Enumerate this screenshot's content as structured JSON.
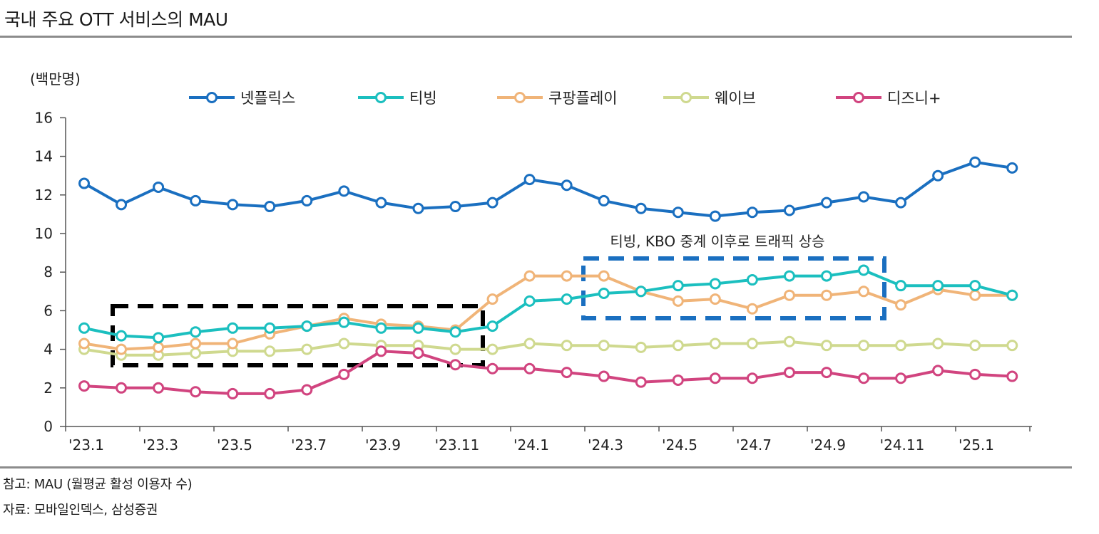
{
  "header": {
    "title": "국내 주요 OTT 서비스의 MAU"
  },
  "footer": {
    "note": "참고: MAU (월평균 활성 이용자 수)",
    "source": "자료: 모바일인덱스, 삼성증권"
  },
  "chart_data": {
    "type": "line",
    "title": "국내 주요 OTT 서비스의 MAU",
    "ylabel": "(백만명)",
    "xlabel": "",
    "ylim": [
      0,
      16
    ],
    "yticks": [
      0,
      2,
      4,
      6,
      8,
      10,
      12,
      14,
      16
    ],
    "x": [
      "'23.1",
      "'23.2",
      "'23.3",
      "'23.4",
      "'23.5",
      "'23.6",
      "'23.7",
      "'23.8",
      "'23.9",
      "'23.10",
      "'23.11",
      "'23.12",
      "'24.1",
      "'24.2",
      "'24.3",
      "'24.4",
      "'24.5",
      "'24.6",
      "'24.7",
      "'24.8",
      "'24.9",
      "'24.10",
      "'24.11",
      "'24.12",
      "'25.1",
      "'25.2"
    ],
    "xtick_labels": [
      "'23.1",
      "'23.3",
      "'23.5",
      "'23.7",
      "'23.9",
      "'23.11",
      "'24.1",
      "'24.3",
      "'24.5",
      "'24.7",
      "'24.9",
      "'24.11",
      "'25.1"
    ],
    "legend_position": "top",
    "series": [
      {
        "name": "넷플릭스",
        "color": "#1a6fc0",
        "values": [
          12.6,
          11.5,
          12.4,
          11.7,
          11.5,
          11.4,
          11.7,
          12.2,
          11.6,
          11.3,
          11.4,
          11.6,
          12.8,
          12.5,
          11.7,
          11.3,
          11.1,
          10.9,
          11.1,
          11.2,
          11.6,
          11.9,
          11.6,
          13.0,
          13.7,
          13.4
        ]
      },
      {
        "name": "티빙",
        "color": "#1bbfbf",
        "values": [
          5.1,
          4.7,
          4.6,
          4.9,
          5.1,
          5.1,
          5.2,
          5.4,
          5.1,
          5.1,
          4.9,
          5.2,
          6.5,
          6.6,
          6.9,
          7.0,
          7.3,
          7.4,
          7.6,
          7.8,
          7.8,
          8.1,
          7.3,
          7.3,
          7.3,
          6.8
        ]
      },
      {
        "name": "쿠팡플레이",
        "color": "#f0b478",
        "values": [
          4.3,
          4.0,
          4.1,
          4.3,
          4.3,
          4.8,
          5.2,
          5.6,
          5.3,
          5.2,
          5.0,
          6.6,
          7.8,
          7.8,
          7.8,
          7.0,
          6.5,
          6.6,
          6.1,
          6.8,
          6.8,
          7.0,
          6.3,
          7.1,
          6.8,
          6.8
        ]
      },
      {
        "name": "웨이브",
        "color": "#cfd98f",
        "values": [
          4.0,
          3.7,
          3.7,
          3.8,
          3.9,
          3.9,
          4.0,
          4.3,
          4.2,
          4.2,
          4.0,
          4.0,
          4.3,
          4.2,
          4.2,
          4.1,
          4.2,
          4.3,
          4.3,
          4.4,
          4.2,
          4.2,
          4.2,
          4.3,
          4.2,
          4.2
        ]
      },
      {
        "name": "디즈니+",
        "color": "#d1447f",
        "values": [
          2.1,
          2.0,
          2.0,
          1.8,
          1.7,
          1.7,
          1.9,
          2.7,
          3.9,
          3.8,
          3.2,
          3.0,
          3.0,
          2.8,
          2.6,
          2.3,
          2.4,
          2.5,
          2.5,
          2.8,
          2.8,
          2.5,
          2.5,
          2.9,
          2.7,
          2.6
        ]
      }
    ],
    "annotations": [
      {
        "text": "티빙, KBO 중계 이후로 트래픽 상승",
        "style": "dashed-box",
        "color": "#1a6fc0",
        "range": [
          "'24.3",
          "'24.10"
        ]
      },
      {
        "text": "",
        "style": "dashed-box",
        "color": "#000000",
        "range": [
          "'23.2",
          "'23.11"
        ]
      }
    ]
  }
}
